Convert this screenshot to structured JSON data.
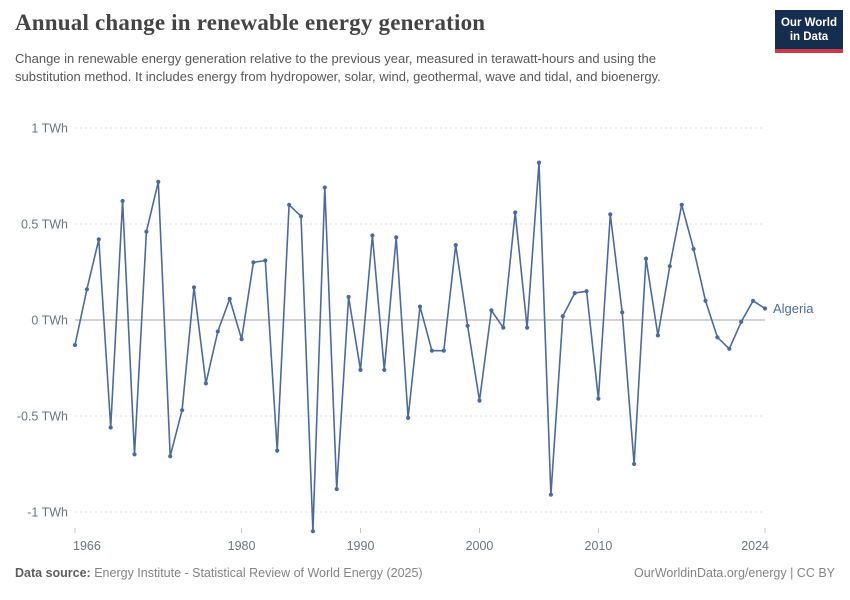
{
  "header": {
    "title": "Annual change in renewable energy generation",
    "subtitle": "Change in renewable energy generation relative to the previous year, measured in terawatt-hours and using the substitution method. It includes energy from hydropower, solar, wind, geothermal, wave and tidal, and bioenergy.",
    "logo": {
      "line1": "Our World",
      "line2": "in Data"
    }
  },
  "footer": {
    "source_label": "Data source:",
    "source": " Energy Institute - Statistical Review of World Energy (2025)",
    "credit": "OurWorldinData.org/energy | CC BY"
  },
  "chart_data": {
    "type": "line",
    "title": "Annual change in renewable energy generation",
    "entity": "Algeria",
    "unit": "TWh",
    "xlabel": "",
    "ylabel": "TWh",
    "ylim": [
      -1.15,
      1.05
    ],
    "xlim": [
      1966,
      2024
    ],
    "grid": "dashed horizontal gridlines, solid zero line",
    "legend_position": "end-of-line label",
    "x": [
      1966,
      1967,
      1968,
      1969,
      1970,
      1971,
      1972,
      1973,
      1974,
      1975,
      1976,
      1977,
      1978,
      1979,
      1980,
      1981,
      1982,
      1983,
      1984,
      1985,
      1986,
      1987,
      1988,
      1989,
      1990,
      1991,
      1992,
      1993,
      1994,
      1995,
      1996,
      1997,
      1998,
      1999,
      2000,
      2001,
      2002,
      2003,
      2004,
      2005,
      2006,
      2007,
      2008,
      2009,
      2010,
      2011,
      2012,
      2013,
      2014,
      2015,
      2016,
      2017,
      2018,
      2019,
      2020,
      2021,
      2022,
      2023,
      2024
    ],
    "series": [
      {
        "name": "Algeria",
        "values": [
          -0.13,
          0.16,
          0.42,
          -0.56,
          0.62,
          -0.7,
          0.46,
          0.72,
          -0.71,
          -0.47,
          0.17,
          -0.33,
          -0.06,
          0.11,
          -0.1,
          0.3,
          0.31,
          -0.68,
          0.6,
          0.54,
          -1.1,
          0.69,
          -0.88,
          0.12,
          -0.26,
          0.44,
          -0.26,
          0.43,
          -0.51,
          0.07,
          -0.16,
          -0.16,
          0.39,
          -0.03,
          -0.42,
          0.05,
          -0.04,
          0.56,
          -0.04,
          0.82,
          -0.91,
          0.02,
          0.14,
          0.15,
          -0.41,
          0.55,
          0.04,
          -0.75,
          0.32,
          -0.08,
          0.28,
          0.6,
          0.37,
          0.1,
          -0.09,
          -0.15,
          -0.01,
          0.1,
          0.06
        ]
      }
    ],
    "y_ticks": [
      {
        "value": 1,
        "label": "1 TWh"
      },
      {
        "value": 0.5,
        "label": "0.5 TWh"
      },
      {
        "value": 0,
        "label": "0 TWh"
      },
      {
        "value": -0.5,
        "label": "-0.5 TWh"
      },
      {
        "value": -1,
        "label": "-1 TWh"
      }
    ],
    "x_ticks": [
      {
        "value": 1966,
        "label": "1966"
      },
      {
        "value": 1980,
        "label": "1980"
      },
      {
        "value": 1990,
        "label": "1990"
      },
      {
        "value": 2000,
        "label": "2000"
      },
      {
        "value": 2010,
        "label": "2010"
      },
      {
        "value": 2024,
        "label": "2024"
      }
    ],
    "colors": {
      "line": "#4c6a9e",
      "grid": "#dcdcdc",
      "zero_line": "#a5a5a5",
      "tick": "#c4c4c4",
      "axis_text": "#6d757d",
      "logo_bg": "#152d4e",
      "logo_accent": "#cf3848"
    }
  }
}
